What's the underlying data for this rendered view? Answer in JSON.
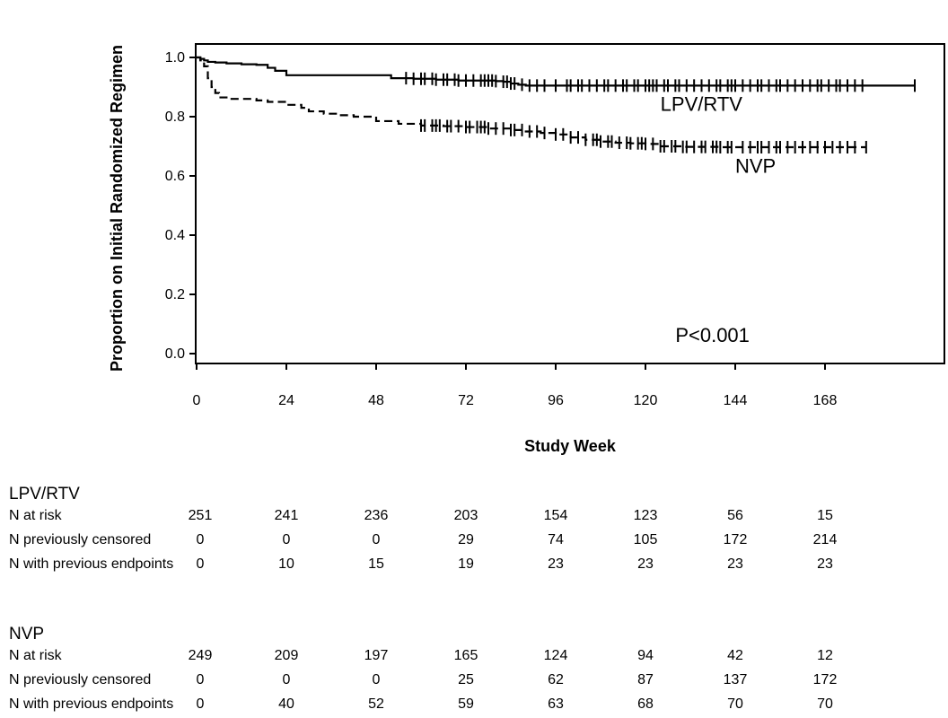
{
  "chart_data": {
    "type": "line",
    "xlabel": "Study Week",
    "ylabel": "Proportion on Initial Randomized Regimen",
    "xlim": [
      0,
      193
    ],
    "ylim": [
      -0.04,
      1.04
    ],
    "xticks": [
      "0",
      "24",
      "48",
      "72",
      "96",
      "120",
      "144",
      "168"
    ],
    "yticks": [
      "0.0",
      "0.2",
      "0.4",
      "0.6",
      "0.8",
      "1.0"
    ],
    "annotation": "P<0.001",
    "series": [
      {
        "name": "LPV/RTV",
        "style": "solid",
        "x": [
          0,
          1,
          2,
          3,
          5,
          8,
          12,
          16,
          19,
          21,
          24,
          30,
          36,
          42,
          46,
          52,
          58,
          64,
          70,
          76,
          80,
          82,
          84,
          86,
          88,
          92,
          100,
          110,
          120,
          130,
          140,
          150,
          160,
          170,
          180,
          192
        ],
        "y": [
          1.0,
          0.995,
          0.99,
          0.985,
          0.983,
          0.98,
          0.977,
          0.975,
          0.965,
          0.955,
          0.94,
          0.94,
          0.94,
          0.94,
          0.94,
          0.93,
          0.928,
          0.925,
          0.922,
          0.922,
          0.92,
          0.918,
          0.912,
          0.908,
          0.905,
          0.905,
          0.905,
          0.905,
          0.905,
          0.905,
          0.905,
          0.905,
          0.905,
          0.905,
          0.905,
          0.905
        ],
        "censored": [
          56,
          58,
          60,
          61,
          63,
          64,
          66,
          67,
          69,
          70,
          72,
          74,
          76,
          77,
          78,
          79,
          80,
          82,
          83,
          84,
          85,
          87,
          89,
          91,
          93,
          96,
          99,
          100,
          102,
          103,
          105,
          107,
          109,
          110,
          112,
          114,
          115,
          117,
          118,
          120,
          121,
          122,
          123,
          125,
          126,
          128,
          129,
          131,
          133,
          135,
          137,
          139,
          140,
          142,
          143,
          144,
          146,
          148,
          150,
          151,
          153,
          155,
          156,
          158,
          160,
          162,
          164,
          166,
          167,
          169,
          171,
          172,
          174,
          176,
          178,
          192
        ]
      },
      {
        "name": "NVP",
        "style": "dashed",
        "x": [
          0,
          1,
          2,
          3,
          4,
          5,
          6,
          8,
          12,
          16,
          19,
          24,
          28,
          30,
          34,
          38,
          42,
          48,
          54,
          60,
          66,
          72,
          78,
          84,
          88,
          92,
          96,
          100,
          104,
          108,
          112,
          116,
          120,
          124,
          130,
          140,
          150,
          160,
          170,
          179
        ],
        "y": [
          1.0,
          0.99,
          0.97,
          0.93,
          0.9,
          0.88,
          0.865,
          0.86,
          0.86,
          0.855,
          0.85,
          0.84,
          0.83,
          0.818,
          0.81,
          0.805,
          0.8,
          0.785,
          0.776,
          0.77,
          0.768,
          0.765,
          0.76,
          0.755,
          0.75,
          0.745,
          0.74,
          0.73,
          0.722,
          0.716,
          0.712,
          0.71,
          0.708,
          0.7,
          0.698,
          0.697,
          0.697,
          0.697,
          0.697,
          0.697
        ],
        "censored": [
          60,
          61,
          63,
          64,
          65,
          67,
          68,
          70,
          72,
          73,
          75,
          76,
          77,
          78,
          80,
          82,
          84,
          85,
          87,
          89,
          91,
          93,
          96,
          98,
          100,
          102,
          104,
          106,
          107,
          108,
          110,
          111,
          113,
          115,
          116,
          118,
          119,
          120,
          122,
          124,
          125,
          127,
          128,
          130,
          131,
          133,
          135,
          136,
          138,
          139,
          140,
          142,
          143,
          146,
          148,
          150,
          151,
          153,
          155,
          156,
          158,
          160,
          162,
          164,
          166,
          168,
          170,
          172,
          174,
          176,
          179
        ]
      }
    ],
    "curve_labels": [
      {
        "text": "LPV/RTV",
        "x": 124,
        "y": 0.82
      },
      {
        "text": "NVP",
        "x": 144,
        "y": 0.61
      }
    ],
    "annotation_pos": {
      "x": 128,
      "y": 0.04
    }
  },
  "risk_table": {
    "groups": [
      {
        "title": "LPV/RTV",
        "rows": [
          {
            "label": "N at risk",
            "values": [
              "251",
              "241",
              "236",
              "203",
              "154",
              "123",
              "56",
              "15"
            ]
          },
          {
            "label": "N previously censored",
            "values": [
              "0",
              "0",
              "0",
              "29",
              "74",
              "105",
              "172",
              "214"
            ]
          },
          {
            "label": "N with previous endpoints",
            "values": [
              "0",
              "10",
              "15",
              "19",
              "23",
              "23",
              "23",
              "23"
            ]
          }
        ]
      },
      {
        "title": "NVP",
        "rows": [
          {
            "label": "N at risk",
            "values": [
              "249",
              "209",
              "197",
              "165",
              "124",
              "94",
              "42",
              "12"
            ]
          },
          {
            "label": "N previously censored",
            "values": [
              "0",
              "0",
              "0",
              "25",
              "62",
              "87",
              "137",
              "172"
            ]
          },
          {
            "label": "N with previous endpoints",
            "values": [
              "0",
              "40",
              "52",
              "59",
              "63",
              "68",
              "70",
              "70"
            ]
          }
        ]
      }
    ]
  }
}
